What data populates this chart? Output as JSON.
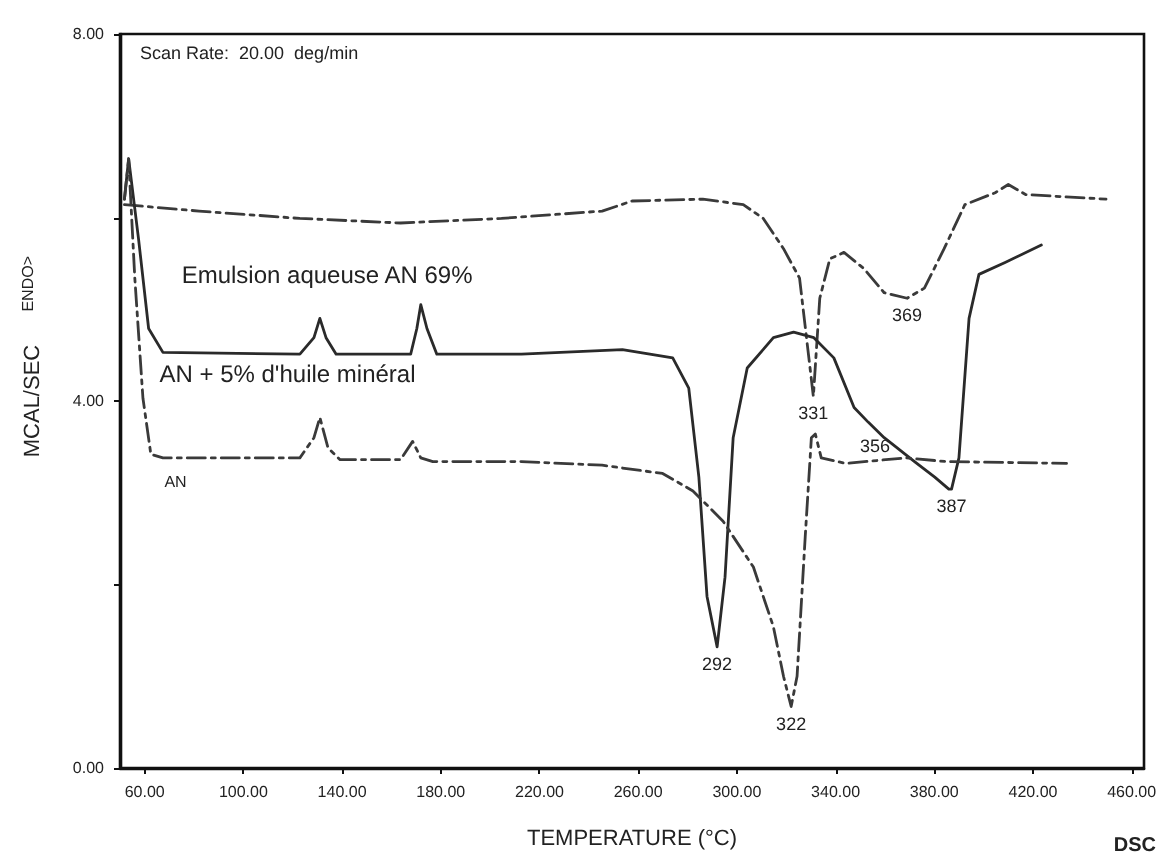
{
  "chart_data": {
    "type": "line",
    "xlabel": "TEMPERATURE (°C)",
    "ylabel": "MCAL/SEC",
    "annotations": [
      "Scan Rate:  20.00  deg/min",
      "ENDO>",
      "DSC",
      {
        "text": "292",
        "x": 292,
        "y": 1.32
      },
      {
        "text": "322",
        "x": 322,
        "y": 0.67
      },
      {
        "text": "331",
        "x": 331,
        "y": 4.05
      },
      {
        "text": "356",
        "x": 356,
        "y": 3.7
      },
      {
        "text": "369",
        "x": 369,
        "y": 5.12
      },
      {
        "text": "387",
        "x": 387,
        "y": 3.04
      }
    ],
    "xlim": [
      50,
      465
    ],
    "xticks": [
      {
        "value": 60,
        "label": "60.00"
      },
      {
        "value": 100,
        "label": "100.00"
      },
      {
        "value": 140,
        "label": "140.00"
      },
      {
        "value": 180,
        "label": "180.00"
      },
      {
        "value": 220,
        "label": "220.00"
      },
      {
        "value": 260,
        "label": "260.00"
      },
      {
        "value": 300,
        "label": "300.00"
      },
      {
        "value": 340,
        "label": "340.00"
      },
      {
        "value": 380,
        "label": "380.00"
      },
      {
        "value": 420,
        "label": "420.00"
      },
      {
        "value": 460,
        "label": "460.00"
      }
    ],
    "ylim": [
      0,
      8
    ],
    "yticks": [
      {
        "value": 0,
        "label": "0.00"
      },
      {
        "value": 2,
        "label": null
      },
      {
        "value": 4,
        "label": "4.00"
      },
      {
        "value": 6,
        "label": null
      },
      {
        "value": 8,
        "label": "8.00"
      }
    ],
    "grid": false,
    "marker": "none",
    "legend": false,
    "series": [
      {
        "name": "Emulsion aqueuse AN 69%",
        "color": "#3a3a3a",
        "line_style": "dashed",
        "x": [
          51.8,
          82,
          122.9,
          163.7,
          204.6,
          245.4,
          257.6,
          286.2,
          302.6,
          310.7,
          318.9,
          325.4,
          331,
          333.6,
          337.7,
          343.4,
          351.6,
          359.7,
          369,
          376,
          384,
          392.4,
          404.7,
          410,
          417,
          449.6
        ],
        "values": [
          6.14,
          6.07,
          5.99,
          5.94,
          5.99,
          6.07,
          6.18,
          6.2,
          6.14,
          5.99,
          5.66,
          5.34,
          4.05,
          5.12,
          5.55,
          5.62,
          5.44,
          5.18,
          5.12,
          5.23,
          5.66,
          6.14,
          6.27,
          6.36,
          6.25,
          6.2
        ]
      },
      {
        "name": "AN + 5% d'huile minéral",
        "color": "#2a2a2a",
        "line_style": "solid",
        "x": [
          51.8,
          53.5,
          57.5,
          61.6,
          67.4,
          122.9,
          128.6,
          131,
          133.5,
          137.6,
          167.8,
          170.3,
          171.9,
          174.4,
          178.4,
          212.7,
          253.6,
          274,
          280.5,
          284.6,
          287.9,
          292,
          295.2,
          298.5,
          304.2,
          314.8,
          323,
          331.2,
          339.3,
          347.5,
          353.2,
          359.7,
          372,
          380.2,
          385.9,
          387,
          390,
          394.1,
          398.1,
          408.7,
          423.4
        ],
        "values": [
          6.2,
          6.64,
          5.77,
          4.79,
          4.53,
          4.51,
          4.69,
          4.9,
          4.69,
          4.51,
          4.51,
          4.79,
          5.05,
          4.79,
          4.51,
          4.51,
          4.56,
          4.47,
          4.14,
          3.17,
          1.87,
          1.32,
          2.08,
          3.6,
          4.36,
          4.69,
          4.75,
          4.69,
          4.47,
          3.93,
          3.77,
          3.6,
          3.34,
          3.17,
          3.04,
          3.04,
          3.38,
          4.9,
          5.38,
          5.51,
          5.7
        ]
      },
      {
        "name": "AN",
        "color": "#3a3a3a",
        "line_style": "dashed",
        "x": [
          51.8,
          53.5,
          56,
          59.3,
          62.5,
          67.4,
          122.9,
          128.6,
          131,
          134.3,
          139.2,
          163.7,
          168.6,
          171.9,
          176.8,
          212.7,
          245.4,
          269.9,
          282.2,
          294.4,
          306.7,
          314.8,
          318.9,
          322,
          324.4,
          327.7,
          330.2,
          331.8,
          334.2,
          344,
          368.5,
          384.8,
          433.6
        ],
        "values": [
          6.2,
          6.64,
          5.34,
          4.03,
          3.42,
          3.38,
          3.38,
          3.6,
          3.82,
          3.49,
          3.36,
          3.36,
          3.56,
          3.38,
          3.34,
          3.34,
          3.3,
          3.21,
          3.02,
          2.69,
          2.19,
          1.54,
          1.0,
          0.67,
          1.0,
          2.52,
          3.6,
          3.64,
          3.38,
          3.32,
          3.38,
          3.34,
          3.32
        ]
      }
    ]
  }
}
